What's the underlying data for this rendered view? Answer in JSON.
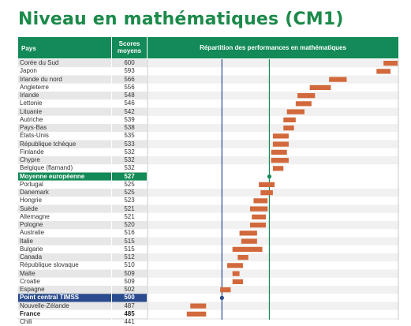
{
  "title": "Niveau en mathématiques (CM1)",
  "header": {
    "country": "Pays",
    "score_line1": "Scores",
    "score_line2": "moyens",
    "chart": "Répartition des performances en mathématiques"
  },
  "colors": {
    "accent_green": "#138a57",
    "bar_orange": "#d2693c",
    "timss_blue": "#2a4b8d",
    "row_shade": "#e7e7e7"
  },
  "chart_data": {
    "type": "bar",
    "xlim": [
      450,
      600
    ],
    "x_ticks": [
      "450",
      "500",
      "550",
      "600"
    ],
    "reference_lines": [
      {
        "name": "Point central TIMSS",
        "value": 500,
        "color": "#2a4b8d"
      },
      {
        "name": "Moyenne européenne",
        "value": 527,
        "color": "#138a57"
      }
    ],
    "rows": [
      {
        "country": "Corée du Sud",
        "score": "600",
        "low": 592,
        "high": 608
      },
      {
        "country": "Japon",
        "score": "593",
        "low": 588,
        "high": 596
      },
      {
        "country": "Irlande du nord",
        "score": "566",
        "low": 561,
        "high": 571
      },
      {
        "country": "Angleterre",
        "score": "556",
        "low": 550,
        "high": 562
      },
      {
        "country": "Irlande",
        "score": "548",
        "low": 543,
        "high": 553
      },
      {
        "country": "Lettonie",
        "score": "546",
        "low": 542,
        "high": 551
      },
      {
        "country": "Lituanie",
        "score": "542",
        "low": 537,
        "high": 547
      },
      {
        "country": "Autriche",
        "score": "539",
        "low": 535,
        "high": 542
      },
      {
        "country": "Pays-Bas",
        "score": "538",
        "low": 535,
        "high": 541
      },
      {
        "country": "États-Unis",
        "score": "535",
        "low": 529,
        "high": 538
      },
      {
        "country": "République tchèque",
        "score": "533",
        "low": 529,
        "high": 538
      },
      {
        "country": "Finlande",
        "score": "532",
        "low": 528,
        "high": 537
      },
      {
        "country": "Chypre",
        "score": "532",
        "low": 528,
        "high": 538
      },
      {
        "country": "Belgique (flamand)",
        "score": "532",
        "low": 529,
        "high": 535
      },
      {
        "country": "Moyenne européenne",
        "score": "527",
        "kind": "euro",
        "point": 527
      },
      {
        "country": "Portugal",
        "score": "525",
        "low": 521,
        "high": 530
      },
      {
        "country": "Danemark",
        "score": "525",
        "low": 522,
        "high": 529
      },
      {
        "country": "Hongrie",
        "score": "523",
        "low": 518,
        "high": 526
      },
      {
        "country": "Suède",
        "score": "521",
        "low": 516,
        "high": 526
      },
      {
        "country": "Allemagne",
        "score": "521",
        "low": 517,
        "high": 525
      },
      {
        "country": "Pologne",
        "score": "520",
        "low": 516,
        "high": 525
      },
      {
        "country": "Australie",
        "score": "516",
        "low": 510,
        "high": 520
      },
      {
        "country": "Italie",
        "score": "515",
        "low": 511,
        "high": 520
      },
      {
        "country": "Bulgarie",
        "score": "515",
        "low": 506,
        "high": 523
      },
      {
        "country": "Canada",
        "score": "512",
        "low": 509,
        "high": 515
      },
      {
        "country": "République slovaque",
        "score": "510",
        "low": 503,
        "high": 512
      },
      {
        "country": "Malte",
        "score": "509",
        "low": 506,
        "high": 510
      },
      {
        "country": "Croatie",
        "score": "509",
        "low": 506,
        "high": 512
      },
      {
        "country": "Espagne",
        "score": "502",
        "low": 499,
        "high": 505
      },
      {
        "country": "Point central TIMSS",
        "score": "500",
        "kind": "timss",
        "point": 500
      },
      {
        "country": "Nouvelle-Zélande",
        "score": "487",
        "low": 482,
        "high": 491
      },
      {
        "country": "France",
        "score": "485",
        "kind": "france",
        "low": 480,
        "high": 491
      },
      {
        "country": "Chili",
        "score": "441"
      }
    ]
  }
}
